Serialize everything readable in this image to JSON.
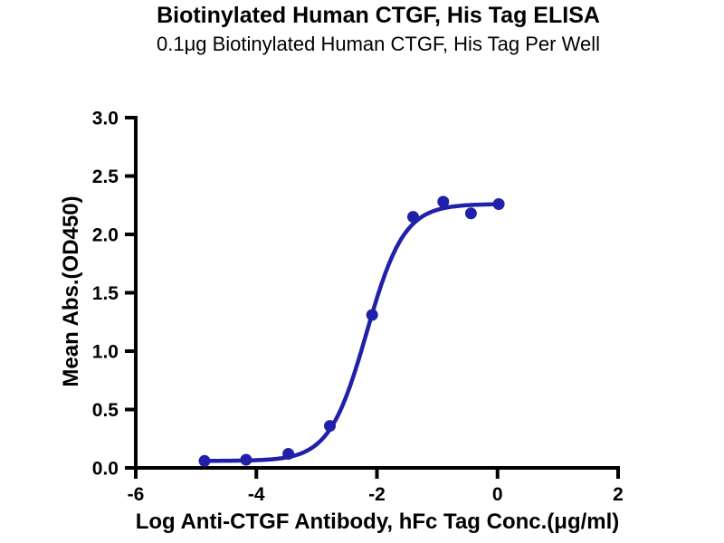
{
  "title": "Biotinylated Human CTGF, His Tag ELISA",
  "subtitle": "0.1μg Biotinylated Human CTGF, His Tag Per Well",
  "colors": {
    "curve": "#2020A8",
    "axis": "#000000",
    "text": "#000000",
    "background": "#FFFFFF"
  },
  "chart_data": {
    "type": "scatter",
    "title": "Biotinylated Human CTGF, His Tag ELISA",
    "subtitle": "0.1μg Biotinylated Human CTGF, His Tag Per Well",
    "xlabel": "Log Anti-CTGF Antibody, hFc Tag Conc.(μg/ml)",
    "ylabel": "Mean Abs.(OD450)",
    "xlim": [
      -6,
      2
    ],
    "ylim": [
      0,
      3
    ],
    "x_ticks": [
      -6,
      -4,
      -2,
      0,
      2
    ],
    "x_tick_labels": [
      "-6",
      "-4",
      "-2",
      "0",
      "2"
    ],
    "y_ticks": [
      0,
      0.5,
      1,
      1.5,
      2,
      2.5,
      3
    ],
    "y_tick_labels": [
      "0.0",
      "0.5",
      "1.0",
      "1.5",
      "2.0",
      "2.5",
      "3.0"
    ],
    "grid": false,
    "legend": "none",
    "series": [
      {
        "name": "Anti-CTGF Antibody, hFc Tag",
        "color": "#2020A8",
        "marker": "circle",
        "points": [
          {
            "x": -4.86,
            "y": 0.06
          },
          {
            "x": -4.17,
            "y": 0.07
          },
          {
            "x": -3.47,
            "y": 0.12
          },
          {
            "x": -2.78,
            "y": 0.36
          },
          {
            "x": -2.08,
            "y": 1.31
          },
          {
            "x": -1.4,
            "y": 2.15
          },
          {
            "x": -0.9,
            "y": 2.28
          },
          {
            "x": -0.44,
            "y": 2.18
          },
          {
            "x": 0.02,
            "y": 2.26
          }
        ],
        "fit": {
          "model": "4PL",
          "bottom": 0.06,
          "top": 2.26,
          "logEC50": -2.17,
          "hillslope": 1.4,
          "x_start": -4.86,
          "x_end": 0.02
        }
      }
    ]
  }
}
